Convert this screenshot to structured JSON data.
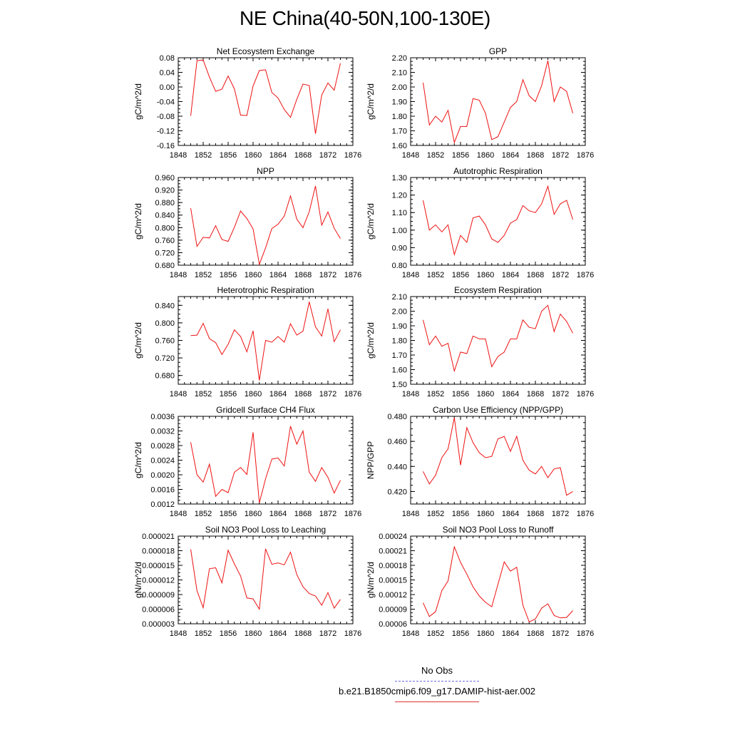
{
  "figure": {
    "title": "NE China(40-50N,100-130E)"
  },
  "legend": {
    "items": [
      {
        "label": "No Obs",
        "color": "#6a6ad8",
        "style": "dashed"
      },
      {
        "label": "b.e21.B1850cmip6.f09_g17.DAMIP-hist-aer.002",
        "color": "#e03030",
        "style": "solid"
      }
    ]
  },
  "line_color": "#ee1111",
  "chart_data": [
    {
      "type": "line",
      "title": "Net Ecosystem Exchange",
      "ylabel": "gC/m^2/d",
      "xlim": [
        1848,
        1876
      ],
      "xticks": [
        "1848",
        "1852",
        "1856",
        "1860",
        "1864",
        "1868",
        "1872",
        "1876"
      ],
      "ylim": [
        -0.16,
        0.08
      ],
      "yticks": [
        "-0.16",
        "-0.12",
        "-0.08",
        "-0.04",
        "0.00",
        "0.04",
        "0.08"
      ],
      "x": [
        1850,
        1851,
        1852,
        1853,
        1854,
        1855,
        1856,
        1857,
        1858,
        1859,
        1860,
        1861,
        1862,
        1863,
        1864,
        1865,
        1866,
        1867,
        1868,
        1869,
        1870,
        1871,
        1872,
        1873,
        1874
      ],
      "series": [
        {
          "values": [
            -0.079,
            0.072,
            0.074,
            0.027,
            -0.012,
            -0.006,
            0.03,
            -0.005,
            -0.077,
            -0.078,
            0.003,
            0.045,
            0.047,
            -0.015,
            -0.03,
            -0.062,
            -0.083,
            -0.034,
            0.008,
            0.004,
            -0.128,
            -0.022,
            0.011,
            -0.009,
            0.065
          ]
        }
      ]
    },
    {
      "type": "line",
      "title": "GPP",
      "ylabel": "gC/m^2/d",
      "xlim": [
        1848,
        1876
      ],
      "xticks": [
        "1848",
        "1852",
        "1856",
        "1860",
        "1864",
        "1868",
        "1872",
        "1876"
      ],
      "ylim": [
        1.6,
        2.2
      ],
      "yticks": [
        "1.60",
        "1.70",
        "1.80",
        "1.90",
        "2.00",
        "2.10",
        "2.20"
      ],
      "x": [
        1850,
        1851,
        1852,
        1853,
        1854,
        1855,
        1856,
        1857,
        1858,
        1859,
        1860,
        1861,
        1862,
        1863,
        1864,
        1865,
        1866,
        1867,
        1868,
        1869,
        1870,
        1871,
        1872,
        1873,
        1874
      ],
      "series": [
        {
          "values": [
            2.03,
            1.74,
            1.8,
            1.76,
            1.84,
            1.62,
            1.73,
            1.73,
            1.92,
            1.91,
            1.82,
            1.64,
            1.66,
            1.76,
            1.86,
            1.9,
            2.05,
            1.94,
            1.9,
            2.01,
            2.18,
            1.9,
            2.0,
            1.97,
            1.82
          ]
        }
      ]
    },
    {
      "type": "line",
      "title": "NPP",
      "ylabel": "gC/m^2/d",
      "xlim": [
        1848,
        1876
      ],
      "xticks": [
        "1848",
        "1852",
        "1856",
        "1860",
        "1864",
        "1868",
        "1872",
        "1876"
      ],
      "ylim": [
        0.68,
        0.96
      ],
      "yticks": [
        "0.680",
        "0.720",
        "0.760",
        "0.800",
        "0.840",
        "0.880",
        "0.920",
        "0.960"
      ],
      "x": [
        1850,
        1851,
        1852,
        1853,
        1854,
        1855,
        1856,
        1857,
        1858,
        1859,
        1860,
        1861,
        1862,
        1863,
        1864,
        1865,
        1866,
        1867,
        1868,
        1869,
        1870,
        1871,
        1872,
        1873,
        1874
      ],
      "series": [
        {
          "values": [
            0.862,
            0.74,
            0.769,
            0.767,
            0.806,
            0.762,
            0.756,
            0.801,
            0.853,
            0.829,
            0.796,
            0.683,
            0.735,
            0.797,
            0.811,
            0.837,
            0.901,
            0.827,
            0.8,
            0.851,
            0.933,
            0.808,
            0.85,
            0.798,
            0.765
          ]
        }
      ]
    },
    {
      "type": "line",
      "title": "Autotrophic Respiration",
      "ylabel": "gC/m^2/d",
      "xlim": [
        1848,
        1876
      ],
      "xticks": [
        "1848",
        "1852",
        "1856",
        "1860",
        "1864",
        "1868",
        "1872",
        "1876"
      ],
      "ylim": [
        0.8,
        1.3
      ],
      "yticks": [
        "0.80",
        "0.90",
        "1.00",
        "1.10",
        "1.20",
        "1.30"
      ],
      "x": [
        1850,
        1851,
        1852,
        1853,
        1854,
        1855,
        1856,
        1857,
        1858,
        1859,
        1860,
        1861,
        1862,
        1863,
        1864,
        1865,
        1866,
        1867,
        1868,
        1869,
        1870,
        1871,
        1872,
        1873,
        1874
      ],
      "series": [
        {
          "values": [
            1.17,
            1.0,
            1.03,
            0.99,
            1.03,
            0.86,
            0.97,
            0.93,
            1.07,
            1.08,
            1.03,
            0.95,
            0.93,
            0.97,
            1.04,
            1.06,
            1.14,
            1.11,
            1.1,
            1.15,
            1.25,
            1.09,
            1.15,
            1.17,
            1.06
          ]
        }
      ]
    },
    {
      "type": "line",
      "title": "Heterotrophic Respiration",
      "ylabel": "gC/m^2/d",
      "xlim": [
        1848,
        1876
      ],
      "xticks": [
        "1848",
        "1852",
        "1856",
        "1860",
        "1864",
        "1868",
        "1872",
        "1876"
      ],
      "ylim": [
        0.66,
        0.86
      ],
      "yticks": [
        "0.680",
        "0.720",
        "0.760",
        "0.800",
        "0.840"
      ],
      "x": [
        1850,
        1851,
        1852,
        1853,
        1854,
        1855,
        1856,
        1857,
        1858,
        1859,
        1860,
        1861,
        1862,
        1863,
        1864,
        1865,
        1866,
        1867,
        1868,
        1869,
        1870,
        1871,
        1872,
        1873,
        1874
      ],
      "series": [
        {
          "values": [
            0.771,
            0.772,
            0.799,
            0.764,
            0.755,
            0.728,
            0.751,
            0.784,
            0.769,
            0.734,
            0.782,
            0.669,
            0.76,
            0.756,
            0.769,
            0.756,
            0.798,
            0.772,
            0.781,
            0.848,
            0.791,
            0.77,
            0.832,
            0.757,
            0.784
          ]
        }
      ]
    },
    {
      "type": "line",
      "title": "Ecosystem Respiration",
      "ylabel": "gC/m^2/d",
      "xlim": [
        1848,
        1876
      ],
      "xticks": [
        "1848",
        "1852",
        "1856",
        "1860",
        "1864",
        "1868",
        "1872",
        "1876"
      ],
      "ylim": [
        1.5,
        2.1
      ],
      "yticks": [
        "1.50",
        "1.60",
        "1.70",
        "1.80",
        "1.90",
        "2.00",
        "2.10"
      ],
      "x": [
        1850,
        1851,
        1852,
        1853,
        1854,
        1855,
        1856,
        1857,
        1858,
        1859,
        1860,
        1861,
        1862,
        1863,
        1864,
        1865,
        1866,
        1867,
        1868,
        1869,
        1870,
        1871,
        1872,
        1873,
        1874
      ],
      "series": [
        {
          "values": [
            1.94,
            1.77,
            1.83,
            1.76,
            1.78,
            1.59,
            1.72,
            1.71,
            1.83,
            1.81,
            1.81,
            1.62,
            1.69,
            1.72,
            1.81,
            1.81,
            1.94,
            1.89,
            1.88,
            2.0,
            2.04,
            1.86,
            1.98,
            1.93,
            1.85
          ]
        }
      ]
    },
    {
      "type": "line",
      "title": "Gridcell Surface CH4 Flux",
      "ylabel": "gC/m^2/d",
      "xlim": [
        1848,
        1876
      ],
      "xticks": [
        "1848",
        "1852",
        "1856",
        "1860",
        "1864",
        "1868",
        "1872",
        "1876"
      ],
      "ylim": [
        0.0012,
        0.0036
      ],
      "yticks": [
        "0.0012",
        "0.0016",
        "0.0020",
        "0.0024",
        "0.0028",
        "0.0032",
        "0.0036"
      ],
      "x": [
        1850,
        1851,
        1852,
        1853,
        1854,
        1855,
        1856,
        1857,
        1858,
        1859,
        1860,
        1861,
        1862,
        1863,
        1864,
        1865,
        1866,
        1867,
        1868,
        1869,
        1870,
        1871,
        1872,
        1873,
        1874
      ],
      "series": [
        {
          "values": [
            0.00289,
            0.002,
            0.0018,
            0.00229,
            0.00141,
            0.0016,
            0.00151,
            0.00207,
            0.0022,
            0.00201,
            0.00316,
            0.00123,
            0.00189,
            0.00243,
            0.00246,
            0.00224,
            0.00333,
            0.00284,
            0.0032,
            0.00207,
            0.00182,
            0.0022,
            0.00193,
            0.0015,
            0.00185
          ]
        }
      ]
    },
    {
      "type": "line",
      "title": "Carbon Use Efficiency (NPP/GPP)",
      "ylabel": "NPP/GPP",
      "xlim": [
        1848,
        1876
      ],
      "xticks": [
        "1848",
        "1852",
        "1856",
        "1860",
        "1864",
        "1868",
        "1872",
        "1876"
      ],
      "ylim": [
        0.41,
        0.48
      ],
      "yticks": [
        "0.420",
        "0.440",
        "0.460",
        "0.480"
      ],
      "x": [
        1850,
        1851,
        1852,
        1853,
        1854,
        1855,
        1856,
        1857,
        1858,
        1859,
        1860,
        1861,
        1862,
        1863,
        1864,
        1865,
        1866,
        1867,
        1868,
        1869,
        1870,
        1871,
        1872,
        1873,
        1874
      ],
      "series": [
        {
          "values": [
            0.436,
            0.426,
            0.433,
            0.447,
            0.454,
            0.479,
            0.441,
            0.471,
            0.459,
            0.451,
            0.447,
            0.448,
            0.462,
            0.464,
            0.452,
            0.464,
            0.445,
            0.437,
            0.434,
            0.44,
            0.431,
            0.438,
            0.439,
            0.417,
            0.42
          ]
        }
      ]
    },
    {
      "type": "line",
      "title": "Soil NO3 Pool Loss to Leaching",
      "ylabel": "gN/m^2/d",
      "xlim": [
        1848,
        1876
      ],
      "xticks": [
        "1848",
        "1852",
        "1856",
        "1860",
        "1864",
        "1868",
        "1872",
        "1876"
      ],
      "ylim": [
        3e-06,
        2.1e-05
      ],
      "yticks": [
        "0.000003",
        "0.000006",
        "0.000009",
        "0.000012",
        "0.000015",
        "0.000018",
        "0.000021"
      ],
      "x": [
        1850,
        1851,
        1852,
        1853,
        1854,
        1855,
        1856,
        1857,
        1858,
        1859,
        1860,
        1861,
        1862,
        1863,
        1864,
        1865,
        1866,
        1867,
        1868,
        1869,
        1870,
        1871,
        1872,
        1873,
        1874
      ],
      "series": [
        {
          "values": [
            1.83e-05,
            9.8e-06,
            6.3e-06,
            1.43e-05,
            1.45e-05,
            1.14e-05,
            1.81e-05,
            1.53e-05,
            1.28e-05,
            8.3e-06,
            8.1e-06,
            6e-06,
            1.84e-05,
            1.52e-05,
            1.55e-05,
            1.51e-05,
            1.77e-05,
            1.31e-05,
            1.06e-05,
            9.2e-06,
            8.7e-06,
            6.8e-06,
            9.4e-06,
            6.2e-06,
            8e-06
          ]
        }
      ]
    },
    {
      "type": "line",
      "title": "Soil NO3 Pool Loss to Runoff",
      "ylabel": "gN/m^2/d",
      "xlim": [
        1848,
        1876
      ],
      "xticks": [
        "1848",
        "1852",
        "1856",
        "1860",
        "1864",
        "1868",
        "1872",
        "1876"
      ],
      "ylim": [
        6e-05,
        0.00024
      ],
      "yticks": [
        "0.00006",
        "0.00009",
        "0.00012",
        "0.00015",
        "0.00018",
        "0.00021",
        "0.00024"
      ],
      "x": [
        1850,
        1851,
        1852,
        1853,
        1854,
        1855,
        1856,
        1857,
        1858,
        1859,
        1860,
        1861,
        1862,
        1863,
        1864,
        1865,
        1866,
        1867,
        1868,
        1869,
        1870,
        1871,
        1872,
        1873,
        1874
      ],
      "series": [
        {
          "values": [
            0.000103,
            7.5e-05,
            8.5e-05,
            0.000128,
            0.000148,
            0.000218,
            0.000186,
            0.000162,
            0.000136,
            0.000117,
            0.000104,
            9.5e-05,
            0.000141,
            0.000187,
            0.000168,
            0.000176,
            9.8e-05,
            6.4e-05,
            7e-05,
            9.2e-05,
            0.000101,
            7.7e-05,
            7.2e-05,
            7.3e-05,
            8.7e-05
          ]
        }
      ]
    }
  ]
}
